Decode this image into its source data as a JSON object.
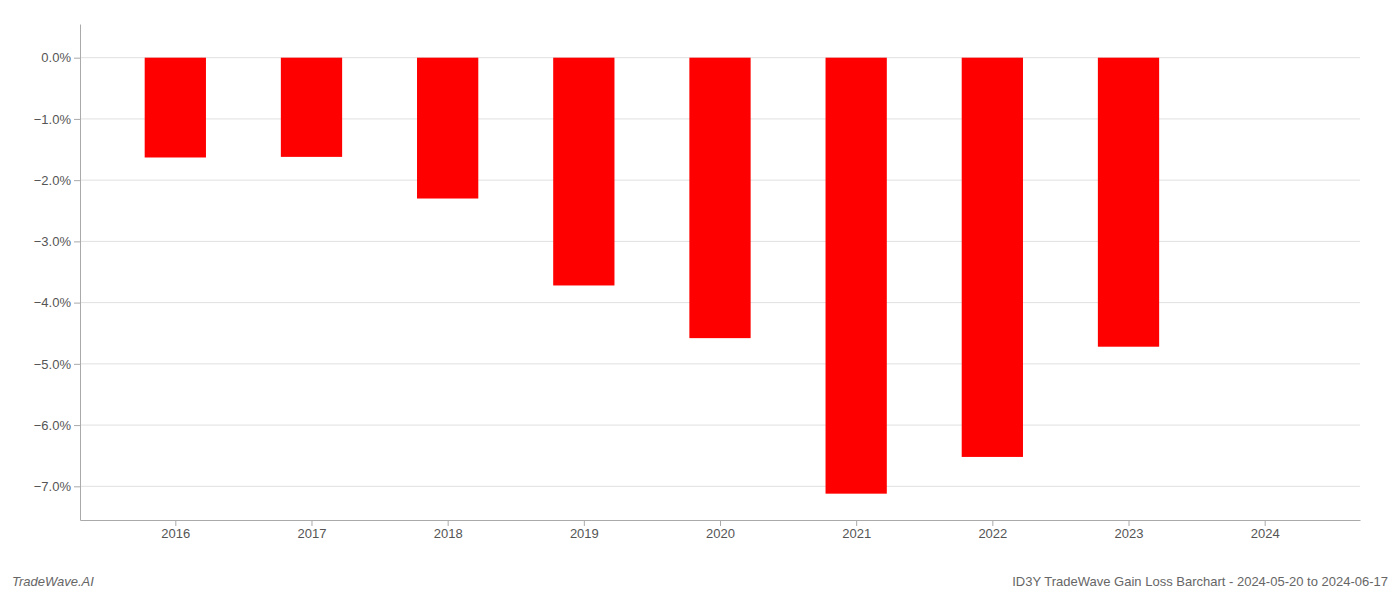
{
  "chart_data": {
    "type": "bar",
    "title": "ID3Y TradeWave Gain Loss Barchart - 2024-05-20 to 2024-06-17",
    "subtitle": "TradeWave.AI",
    "x": [
      2016,
      2017,
      2018,
      2019,
      2020,
      2021,
      2022,
      2023,
      2024
    ],
    "values": [
      -1.63,
      -1.62,
      -2.3,
      -3.72,
      -4.58,
      -7.12,
      -6.52,
      -4.72,
      null
    ],
    "color": "#ff0000",
    "xlim": [
      2015.3,
      2024.7
    ],
    "xticks": [
      2016,
      2017,
      2018,
      2019,
      2020,
      2021,
      2022,
      2023,
      2024
    ],
    "ylim": [
      -7.55,
      0.55
    ],
    "yticks": [
      {
        "value": 0.0,
        "label": "0.0%"
      },
      {
        "value": -1.0,
        "label": "−1.0%"
      },
      {
        "value": -2.0,
        "label": "−2.0%"
      },
      {
        "value": -3.0,
        "label": "−3.0%"
      },
      {
        "value": -4.0,
        "label": "−4.0%"
      },
      {
        "value": -5.0,
        "label": "−5.0%"
      },
      {
        "value": -6.0,
        "label": "−6.0%"
      },
      {
        "value": -7.0,
        "label": "−7.0%"
      }
    ],
    "grid": true
  }
}
